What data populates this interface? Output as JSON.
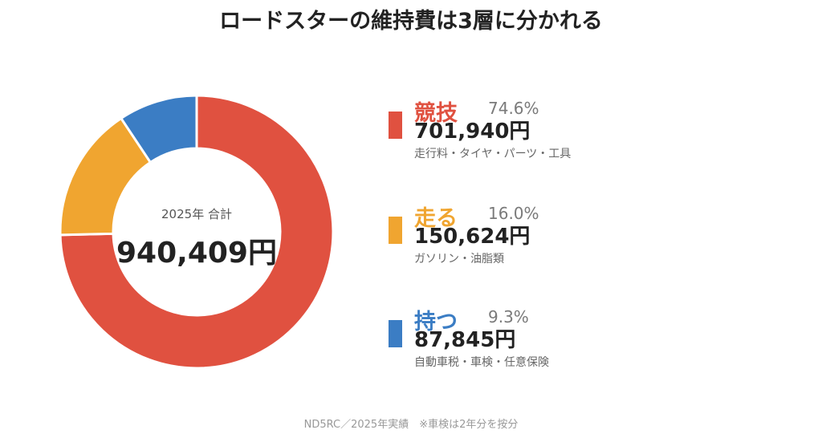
{
  "title": "ロードスターの維持費は3層に分かれる",
  "center": {
    "label": "2025年 合計",
    "total": "940,409円"
  },
  "footnote": "ND5RC／2025年実績　※車検は2年分を按分",
  "chart_data": {
    "type": "pie",
    "style": "donut",
    "total": 940409,
    "categories": [
      "競技",
      "走る",
      "持つ"
    ],
    "values": [
      701940,
      150624,
      87845
    ],
    "percents": [
      "74.6%",
      "16.0%",
      "9.3%"
    ],
    "amount_labels": [
      "701,940円",
      "150,624円",
      "87,845円"
    ],
    "descriptions": [
      "走行料・タイヤ・パーツ・工具",
      "ガソリン・油脂類",
      "自動車税・車検・任意保険"
    ],
    "colors": [
      "#E05140",
      "#F0A530",
      "#3B7DC4"
    ],
    "legend_placement": "right"
  }
}
